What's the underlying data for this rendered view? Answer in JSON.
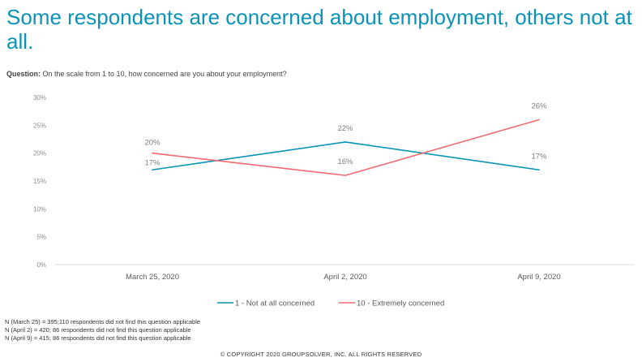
{
  "title": "Some respondents are concerned about employment, others not at all.",
  "question": {
    "label": "Question:",
    "text": "On the scale from 1 to 10, how concerned are you about your employment?"
  },
  "chart_data": {
    "type": "line",
    "categories": [
      "March 25, 2020",
      "April 2, 2020",
      "April 9, 2020"
    ],
    "y_ticks": [
      "0%",
      "5%",
      "10%",
      "15%",
      "20%",
      "25%",
      "30%"
    ],
    "ylim": [
      0,
      30
    ],
    "grid": false,
    "legend_position": "bottom",
    "series": [
      {
        "name": "1 - Not at all concerned",
        "values": [
          17,
          22,
          17
        ],
        "labels": [
          "17%",
          "22%",
          "17%"
        ],
        "color": "#0a93b6"
      },
      {
        "name": "10 - Extremely concerned",
        "values": [
          20,
          16,
          26
        ],
        "labels": [
          "20%",
          "16%",
          "26%"
        ],
        "color": "#f26a72"
      }
    ]
  },
  "footnotes": [
    "N (March 25) = 395;110 respondents did not find this question applicable",
    "N (April 2) = 420; 86 respondents did not find this question applicable",
    "N (April 9) = 415; 86 respondents did not find this question applicable"
  ],
  "copyright": "© COPYRIGHT 2020 GROUPSOLVER, INC. ALL RIGHTS RESERVED"
}
